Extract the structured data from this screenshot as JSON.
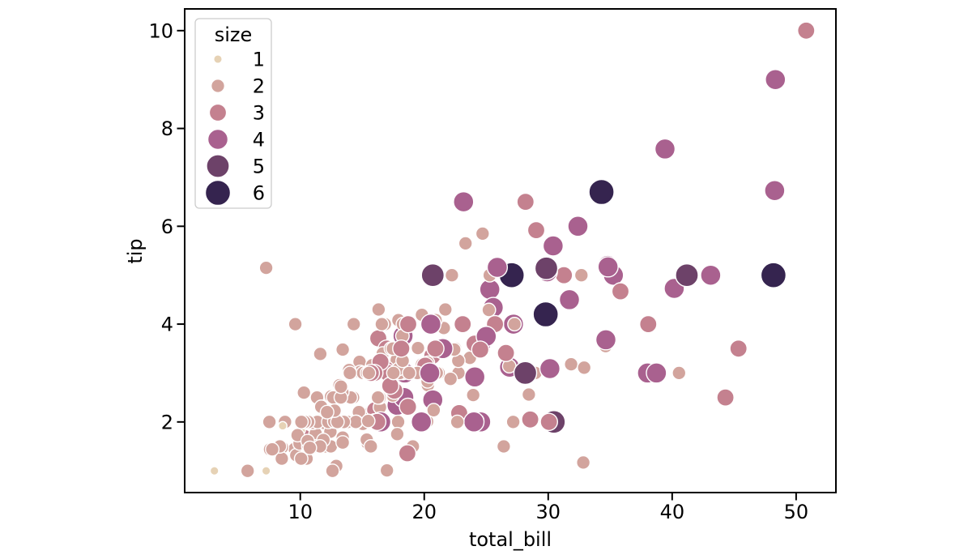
{
  "figure": {
    "background": "#ffffff",
    "spine_color": "#000000",
    "tick_color": "#000000",
    "text_color": "#000000"
  },
  "chart_data": {
    "type": "scatter",
    "title": "",
    "xlabel": "total_bill",
    "ylabel": "tip",
    "xlim": [
      0.674,
      53.21
    ],
    "ylim": [
      0.556,
      10.444
    ],
    "xticks": [
      10,
      20,
      30,
      40,
      50
    ],
    "yticks": [
      2,
      4,
      6,
      8,
      10
    ],
    "grid": false,
    "marker_edge_color": "#ffffff",
    "legend": {
      "title": "size",
      "position": "upper left",
      "frame_color": "#cccccc",
      "entries": [
        {
          "label": "1",
          "color": "#e6d2b5",
          "diameter": 10.5
        },
        {
          "label": "2",
          "color": "#d2a49d",
          "diameter": 16.7
        },
        {
          "label": "3",
          "color": "#c4818f",
          "diameter": 21.2
        },
        {
          "label": "4",
          "color": "#a9618f",
          "diameter": 24.9
        },
        {
          "label": "5",
          "color": "#6d4269",
          "diameter": 28.1
        },
        {
          "label": "6",
          "color": "#35244f",
          "diameter": 31.0
        }
      ]
    },
    "columns": [
      "total_bill",
      "tip",
      "size"
    ],
    "points": [
      [
        16.99,
        1.01,
        2
      ],
      [
        10.34,
        1.66,
        3
      ],
      [
        21.01,
        3.5,
        3
      ],
      [
        23.68,
        3.31,
        2
      ],
      [
        24.59,
        3.61,
        4
      ],
      [
        25.29,
        4.71,
        4
      ],
      [
        8.77,
        2.0,
        2
      ],
      [
        26.88,
        3.12,
        4
      ],
      [
        15.04,
        1.96,
        2
      ],
      [
        14.78,
        3.23,
        2
      ],
      [
        10.27,
        1.71,
        2
      ],
      [
        35.26,
        5.0,
        4
      ],
      [
        15.42,
        1.57,
        2
      ],
      [
        18.43,
        3.0,
        4
      ],
      [
        14.83,
        3.02,
        2
      ],
      [
        21.58,
        3.92,
        2
      ],
      [
        10.33,
        1.67,
        3
      ],
      [
        16.29,
        3.71,
        3
      ],
      [
        16.97,
        3.5,
        3
      ],
      [
        20.65,
        3.35,
        3
      ],
      [
        17.92,
        4.08,
        2
      ],
      [
        20.29,
        2.75,
        2
      ],
      [
        15.77,
        2.23,
        2
      ],
      [
        39.42,
        7.58,
        4
      ],
      [
        19.82,
        3.18,
        2
      ],
      [
        17.81,
        2.34,
        4
      ],
      [
        13.37,
        2.0,
        2
      ],
      [
        12.69,
        2.0,
        2
      ],
      [
        21.7,
        4.3,
        2
      ],
      [
        19.65,
        3.0,
        2
      ],
      [
        9.55,
        1.45,
        2
      ],
      [
        18.35,
        2.5,
        4
      ],
      [
        15.06,
        3.0,
        2
      ],
      [
        20.69,
        2.45,
        4
      ],
      [
        17.78,
        3.27,
        2
      ],
      [
        24.06,
        3.6,
        3
      ],
      [
        16.31,
        2.0,
        3
      ],
      [
        16.93,
        3.07,
        3
      ],
      [
        18.69,
        2.31,
        3
      ],
      [
        31.27,
        5.0,
        3
      ],
      [
        16.04,
        2.24,
        3
      ],
      [
        17.46,
        2.54,
        2
      ],
      [
        13.94,
        3.06,
        2
      ],
      [
        9.68,
        1.32,
        2
      ],
      [
        30.4,
        5.6,
        4
      ],
      [
        18.29,
        3.0,
        2
      ],
      [
        22.23,
        5.0,
        2
      ],
      [
        32.4,
        6.0,
        4
      ],
      [
        28.55,
        2.05,
        3
      ],
      [
        18.04,
        3.0,
        2
      ],
      [
        12.54,
        2.5,
        2
      ],
      [
        10.29,
        2.6,
        2
      ],
      [
        34.81,
        5.2,
        4
      ],
      [
        9.94,
        1.56,
        2
      ],
      [
        25.56,
        4.34,
        4
      ],
      [
        19.49,
        3.51,
        2
      ],
      [
        38.01,
        3.0,
        4
      ],
      [
        26.41,
        1.5,
        2
      ],
      [
        11.24,
        1.76,
        2
      ],
      [
        48.27,
        6.73,
        4
      ],
      [
        20.29,
        3.21,
        2
      ],
      [
        13.81,
        2.0,
        2
      ],
      [
        11.02,
        1.98,
        2
      ],
      [
        18.29,
        3.76,
        4
      ],
      [
        17.59,
        2.64,
        3
      ],
      [
        20.08,
        3.15,
        3
      ],
      [
        16.45,
        2.47,
        2
      ],
      [
        3.07,
        1.0,
        1
      ],
      [
        20.23,
        2.01,
        2
      ],
      [
        15.01,
        2.09,
        2
      ],
      [
        12.02,
        1.97,
        2
      ],
      [
        17.07,
        3.0,
        3
      ],
      [
        26.86,
        3.14,
        2
      ],
      [
        25.28,
        5.0,
        2
      ],
      [
        14.73,
        2.2,
        2
      ],
      [
        10.51,
        1.25,
        2
      ],
      [
        17.92,
        3.08,
        2
      ],
      [
        27.2,
        4.0,
        4
      ],
      [
        22.76,
        3.0,
        2
      ],
      [
        17.29,
        2.71,
        2
      ],
      [
        19.44,
        3.0,
        2
      ],
      [
        16.66,
        3.4,
        2
      ],
      [
        10.07,
        1.83,
        1
      ],
      [
        32.68,
        5.0,
        2
      ],
      [
        15.98,
        2.03,
        2
      ],
      [
        34.83,
        5.17,
        4
      ],
      [
        13.03,
        2.0,
        2
      ],
      [
        18.28,
        4.0,
        2
      ],
      [
        24.71,
        5.85,
        2
      ],
      [
        21.16,
        3.0,
        2
      ],
      [
        28.97,
        3.0,
        2
      ],
      [
        22.49,
        3.5,
        2
      ],
      [
        5.75,
        1.0,
        2
      ],
      [
        16.32,
        4.3,
        2
      ],
      [
        22.75,
        3.25,
        2
      ],
      [
        40.17,
        4.73,
        4
      ],
      [
        27.28,
        4.0,
        2
      ],
      [
        12.03,
        1.5,
        2
      ],
      [
        21.01,
        3.0,
        2
      ],
      [
        12.46,
        1.5,
        2
      ],
      [
        11.35,
        2.5,
        2
      ],
      [
        15.38,
        3.0,
        2
      ],
      [
        44.3,
        2.5,
        3
      ],
      [
        22.42,
        3.48,
        2
      ],
      [
        20.92,
        4.08,
        2
      ],
      [
        15.36,
        1.64,
        2
      ],
      [
        20.49,
        4.06,
        2
      ],
      [
        25.21,
        4.29,
        2
      ],
      [
        18.24,
        3.76,
        2
      ],
      [
        14.31,
        4.0,
        2
      ],
      [
        14.0,
        3.0,
        2
      ],
      [
        7.25,
        1.0,
        1
      ],
      [
        38.07,
        4.0,
        3
      ],
      [
        23.95,
        2.55,
        2
      ],
      [
        25.71,
        4.0,
        3
      ],
      [
        17.31,
        3.5,
        2
      ],
      [
        29.93,
        5.07,
        4
      ],
      [
        10.65,
        1.5,
        2
      ],
      [
        12.43,
        1.8,
        2
      ],
      [
        24.08,
        2.92,
        4
      ],
      [
        11.69,
        2.31,
        2
      ],
      [
        13.42,
        1.68,
        2
      ],
      [
        14.26,
        2.5,
        2
      ],
      [
        15.95,
        2.0,
        2
      ],
      [
        12.48,
        2.52,
        2
      ],
      [
        29.8,
        4.2,
        6
      ],
      [
        8.52,
        1.48,
        2
      ],
      [
        14.52,
        2.0,
        2
      ],
      [
        11.38,
        2.0,
        2
      ],
      [
        22.82,
        2.18,
        3
      ],
      [
        19.08,
        1.5,
        2
      ],
      [
        20.27,
        2.83,
        2
      ],
      [
        11.17,
        1.5,
        2
      ],
      [
        12.26,
        2.0,
        2
      ],
      [
        18.26,
        3.25,
        2
      ],
      [
        8.51,
        1.25,
        2
      ],
      [
        10.33,
        2.0,
        2
      ],
      [
        14.15,
        2.0,
        2
      ],
      [
        16.0,
        2.0,
        2
      ],
      [
        13.16,
        2.75,
        2
      ],
      [
        17.47,
        3.5,
        2
      ],
      [
        34.3,
        6.7,
        6
      ],
      [
        41.19,
        5.0,
        5
      ],
      [
        27.05,
        5.0,
        6
      ],
      [
        16.43,
        2.3,
        2
      ],
      [
        8.35,
        1.5,
        2
      ],
      [
        18.64,
        1.36,
        3
      ],
      [
        11.87,
        1.63,
        2
      ],
      [
        9.78,
        1.73,
        2
      ],
      [
        7.51,
        2.0,
        2
      ],
      [
        14.07,
        2.5,
        2
      ],
      [
        13.13,
        2.0,
        2
      ],
      [
        17.26,
        2.74,
        3
      ],
      [
        24.55,
        2.0,
        4
      ],
      [
        19.77,
        2.0,
        4
      ],
      [
        29.85,
        5.14,
        5
      ],
      [
        48.17,
        5.0,
        6
      ],
      [
        25.0,
        3.75,
        4
      ],
      [
        13.39,
        2.61,
        2
      ],
      [
        16.49,
        2.0,
        4
      ],
      [
        21.5,
        3.5,
        4
      ],
      [
        12.66,
        2.5,
        2
      ],
      [
        16.21,
        2.0,
        3
      ],
      [
        13.81,
        2.0,
        2
      ],
      [
        17.51,
        3.0,
        2
      ],
      [
        24.52,
        3.48,
        3
      ],
      [
        20.76,
        2.24,
        2
      ],
      [
        31.71,
        4.5,
        4
      ],
      [
        10.59,
        1.61,
        2
      ],
      [
        10.63,
        2.0,
        2
      ],
      [
        50.81,
        10.0,
        3
      ],
      [
        15.81,
        3.16,
        2
      ],
      [
        7.25,
        5.15,
        2
      ],
      [
        31.85,
        3.18,
        2
      ],
      [
        16.82,
        4.0,
        2
      ],
      [
        32.9,
        3.11,
        2
      ],
      [
        17.89,
        2.0,
        2
      ],
      [
        14.48,
        2.0,
        2
      ],
      [
        9.6,
        4.0,
        2
      ],
      [
        34.63,
        3.55,
        2
      ],
      [
        34.65,
        3.68,
        4
      ],
      [
        23.33,
        5.65,
        2
      ],
      [
        45.35,
        3.5,
        3
      ],
      [
        23.17,
        6.5,
        4
      ],
      [
        40.55,
        3.0,
        2
      ],
      [
        20.69,
        5.0,
        5
      ],
      [
        20.9,
        3.5,
        3
      ],
      [
        30.46,
        2.0,
        5
      ],
      [
        18.15,
        3.5,
        3
      ],
      [
        23.1,
        4.0,
        3
      ],
      [
        15.69,
        1.5,
        2
      ],
      [
        19.81,
        4.19,
        2
      ],
      [
        28.44,
        2.56,
        2
      ],
      [
        15.48,
        2.02,
        2
      ],
      [
        16.58,
        4.0,
        2
      ],
      [
        7.56,
        1.44,
        2
      ],
      [
        10.34,
        2.0,
        2
      ],
      [
        43.11,
        5.0,
        4
      ],
      [
        13.0,
        2.0,
        2
      ],
      [
        13.51,
        2.0,
        2
      ],
      [
        18.71,
        4.0,
        3
      ],
      [
        12.74,
        2.01,
        2
      ],
      [
        13.0,
        2.0,
        2
      ],
      [
        16.4,
        2.5,
        2
      ],
      [
        20.53,
        4.0,
        4
      ],
      [
        16.47,
        3.23,
        3
      ],
      [
        26.59,
        3.41,
        3
      ],
      [
        38.73,
        3.0,
        4
      ],
      [
        24.27,
        2.03,
        2
      ],
      [
        12.76,
        2.23,
        2
      ],
      [
        30.06,
        2.0,
        3
      ],
      [
        25.89,
        5.16,
        4
      ],
      [
        48.33,
        9.0,
        4
      ],
      [
        13.27,
        2.5,
        2
      ],
      [
        28.17,
        6.5,
        3
      ],
      [
        12.9,
        1.1,
        2
      ],
      [
        28.15,
        3.0,
        5
      ],
      [
        11.59,
        1.5,
        2
      ],
      [
        7.74,
        1.44,
        2
      ],
      [
        30.14,
        3.09,
        4
      ],
      [
        12.16,
        2.2,
        2
      ],
      [
        13.42,
        3.48,
        2
      ],
      [
        8.58,
        1.92,
        1
      ],
      [
        15.98,
        3.0,
        3
      ],
      [
        13.42,
        1.58,
        2
      ],
      [
        16.27,
        2.5,
        2
      ],
      [
        10.09,
        2.0,
        2
      ],
      [
        20.45,
        3.0,
        4
      ],
      [
        13.28,
        2.72,
        2
      ],
      [
        22.12,
        2.88,
        2
      ],
      [
        24.01,
        2.0,
        4
      ],
      [
        15.69,
        3.0,
        3
      ],
      [
        11.61,
        3.39,
        2
      ],
      [
        10.77,
        1.47,
        2
      ],
      [
        15.53,
        3.0,
        2
      ],
      [
        10.07,
        1.25,
        2
      ],
      [
        12.6,
        1.0,
        2
      ],
      [
        32.83,
        1.17,
        2
      ],
      [
        35.83,
        4.67,
        3
      ],
      [
        29.03,
        5.92,
        3
      ],
      [
        27.18,
        2.0,
        2
      ],
      [
        22.67,
        2.0,
        2
      ],
      [
        17.82,
        1.75,
        2
      ],
      [
        18.78,
        3.0,
        2
      ]
    ]
  }
}
